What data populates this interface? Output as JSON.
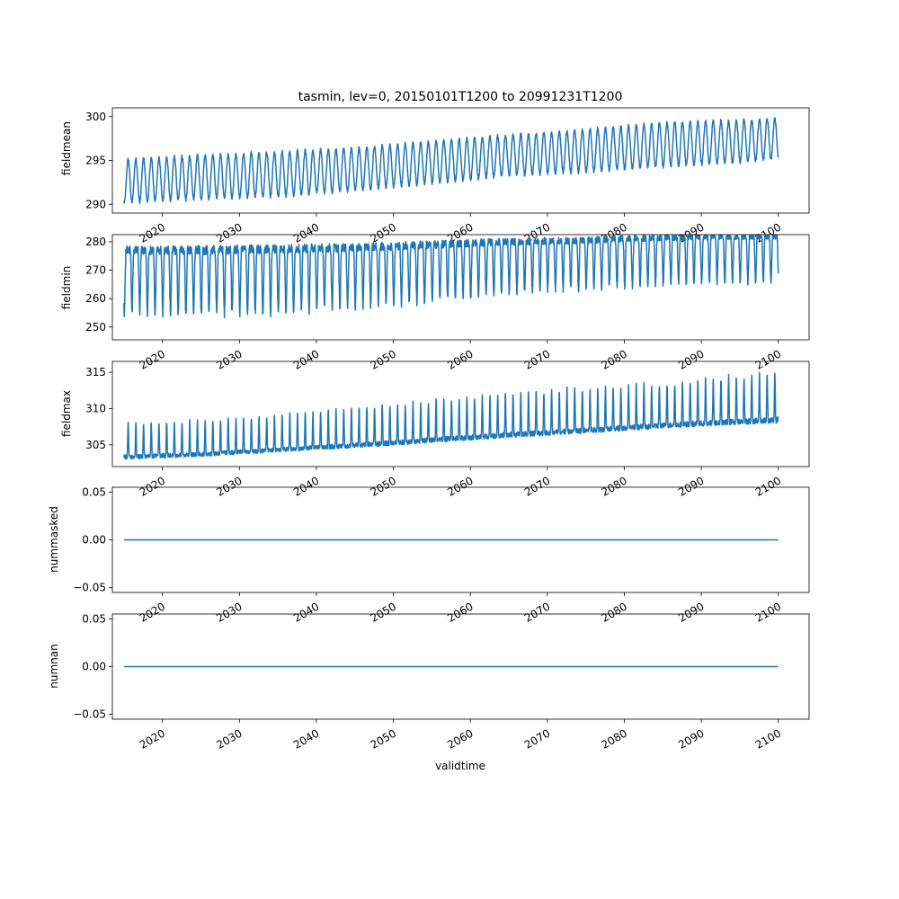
{
  "figure": {
    "title": "tasmin, lev=0, 20150101T1200 to 20991231T1200",
    "xlabel": "validtime"
  },
  "chart_data": [
    {
      "type": "line",
      "ylabel": "fieldmean",
      "xlim": [
        2013.5,
        2104.0
      ],
      "ylim": [
        289.0,
        301.0
      ],
      "yticks": [
        290,
        295,
        300
      ],
      "yticklabels": [
        "290",
        "295",
        "300"
      ],
      "xticks": [
        2020,
        2030,
        2040,
        2050,
        2060,
        2070,
        2080,
        2090,
        2100
      ],
      "xticklabels": [
        "2020",
        "2030",
        "2040",
        "2050",
        "2060",
        "2070",
        "2080",
        "2090",
        "2100"
      ],
      "color": "#1f77b4",
      "series": [
        {
          "x": [
            2015.0,
            2025.0,
            2035.0,
            2045.0,
            2055.0,
            2065.0,
            2075.0,
            2085.0,
            2095.0,
            2100.0
          ],
          "seasonal_low": [
            290.2,
            290.6,
            290.9,
            291.6,
            292.4,
            293.3,
            293.7,
            294.3,
            294.8,
            295.2
          ],
          "seasonal_high": [
            295.1,
            295.6,
            296.0,
            296.4,
            297.2,
            297.9,
            298.5,
            299.3,
            299.6,
            299.8
          ]
        }
      ]
    },
    {
      "type": "line",
      "ylabel": "fieldmin",
      "xlim": [
        2013.5,
        2104.0
      ],
      "ylim": [
        245.5,
        282.5
      ],
      "yticks": [
        250,
        260,
        270,
        280
      ],
      "yticklabels": [
        "250",
        "260",
        "270",
        "280"
      ],
      "xticks": [
        2020,
        2030,
        2040,
        2050,
        2060,
        2070,
        2080,
        2090,
        2100
      ],
      "xticklabels": [
        "2020",
        "2030",
        "2040",
        "2050",
        "2060",
        "2070",
        "2080",
        "2090",
        "2100"
      ],
      "color": "#1f77b4",
      "series": [
        {
          "x": [
            2015.0,
            2025.0,
            2035.0,
            2045.0,
            2055.0,
            2065.0,
            2075.0,
            2085.0,
            2095.0,
            2100.0
          ],
          "seasonal_low": [
            255.0,
            254.0,
            255.0,
            257.0,
            259.0,
            262.0,
            263.5,
            265.0,
            265.5,
            266.0
          ],
          "seasonal_high": [
            277.0,
            277.0,
            277.5,
            278.0,
            279.0,
            280.0,
            280.5,
            281.5,
            282.0,
            282.0
          ]
        }
      ]
    },
    {
      "type": "line",
      "ylabel": "fieldmax",
      "xlim": [
        2013.5,
        2104.0
      ],
      "ylim": [
        302.0,
        316.5
      ],
      "yticks": [
        305,
        310,
        315
      ],
      "yticklabels": [
        "305",
        "310",
        "315"
      ],
      "xticks": [
        2020,
        2030,
        2040,
        2050,
        2060,
        2070,
        2080,
        2090,
        2100
      ],
      "xticklabels": [
        "2020",
        "2030",
        "2040",
        "2050",
        "2060",
        "2070",
        "2080",
        "2090",
        "2100"
      ],
      "color": "#1f77b4",
      "series": [
        {
          "x": [
            2015.0,
            2025.0,
            2035.0,
            2045.0,
            2055.0,
            2065.0,
            2075.0,
            2085.0,
            2095.0,
            2100.0
          ],
          "seasonal_low": [
            303.0,
            303.4,
            304.0,
            304.6,
            305.3,
            306.0,
            306.6,
            307.3,
            307.8,
            308.0
          ],
          "seasonal_high": [
            308.0,
            308.3,
            309.0,
            310.0,
            311.0,
            312.0,
            312.8,
            313.3,
            314.5,
            315.0
          ]
        }
      ]
    },
    {
      "type": "line",
      "ylabel": "nummasked",
      "xlim": [
        2013.5,
        2104.0
      ],
      "ylim": [
        -0.055,
        0.055
      ],
      "yticks": [
        -0.05,
        0.0,
        0.05
      ],
      "yticklabels": [
        "−0.05",
        "0.00",
        "0.05"
      ],
      "xticks": [
        2020,
        2030,
        2040,
        2050,
        2060,
        2070,
        2080,
        2090,
        2100
      ],
      "xticklabels": [
        "2020",
        "2030",
        "2040",
        "2050",
        "2060",
        "2070",
        "2080",
        "2090",
        "2100"
      ],
      "color": "#1f77b4",
      "series": [
        {
          "x": [
            2015.0,
            2100.0
          ],
          "y": [
            0.0,
            0.0
          ]
        }
      ]
    },
    {
      "type": "line",
      "ylabel": "numnan",
      "xlim": [
        2013.5,
        2104.0
      ],
      "ylim": [
        -0.055,
        0.055
      ],
      "yticks": [
        -0.05,
        0.0,
        0.05
      ],
      "yticklabels": [
        "−0.05",
        "0.00",
        "0.05"
      ],
      "xticks": [
        2020,
        2030,
        2040,
        2050,
        2060,
        2070,
        2080,
        2090,
        2100
      ],
      "xticklabels": [
        "2020",
        "2030",
        "2040",
        "2050",
        "2060",
        "2070",
        "2080",
        "2090",
        "2100"
      ],
      "color": "#1f77b4",
      "series": [
        {
          "x": [
            2015.0,
            2100.0
          ],
          "y": [
            0.0,
            0.0
          ]
        }
      ]
    }
  ]
}
